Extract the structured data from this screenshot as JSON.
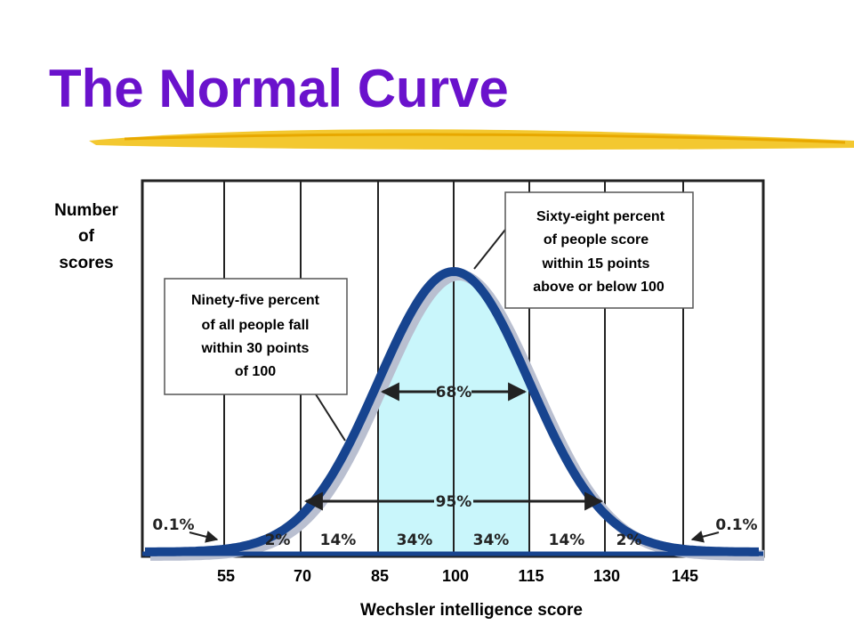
{
  "header": {
    "title": "The Normal Curve"
  },
  "figure": {
    "y_label": [
      "Number",
      "of",
      "scores"
    ],
    "x_label": "Wechsler intelligence score",
    "x_ticks": [
      "55",
      "70",
      "85",
      "100",
      "115",
      "130",
      "145"
    ],
    "callouts": [
      {
        "lines": [
          "Ninety-five percent",
          "of all people fall",
          "within 30 points",
          "of 100"
        ]
      },
      {
        "lines": [
          "Sixty-eight percent",
          "of people score",
          "within 15 points",
          "above or below 100"
        ]
      }
    ],
    "range_labels": [
      "68%",
      "95%"
    ],
    "tail_labels": [
      "0.1%",
      "0.1%"
    ],
    "region_labels": [
      "2%",
      "14%",
      "34%",
      "34%",
      "14%",
      "2%"
    ]
  }
}
